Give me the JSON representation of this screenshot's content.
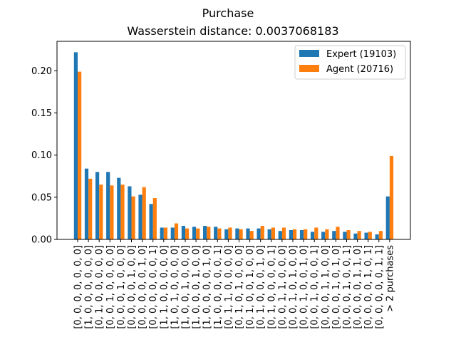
{
  "chart_data": {
    "type": "bar",
    "title": "Purchase",
    "subtitle": "Wasserstein distance: 0.0037068183",
    "xlabel": "",
    "ylabel": "",
    "ylim": [
      0,
      0.235
    ],
    "yticks": [
      "0.00",
      "0.05",
      "0.10",
      "0.15",
      "0.20"
    ],
    "grid": false,
    "legend_position": "top-right",
    "categories": [
      "[0, 0, 0, 0, 0, 0, 0]",
      "[1, 0, 0, 0, 0, 0, 0]",
      "[0, 1, 0, 0, 0, 0, 0]",
      "[0, 0, 1, 0, 0, 0, 0]",
      "[0, 0, 0, 1, 0, 0, 0]",
      "[0, 0, 0, 0, 1, 0, 0]",
      "[0, 0, 0, 0, 0, 1, 0]",
      "[0, 0, 0, 0, 0, 0, 1]",
      "[1, 1, 0, 0, 0, 0, 0]",
      "[1, 0, 1, 0, 0, 0, 0]",
      "[1, 0, 0, 1, 0, 0, 0]",
      "[1, 0, 0, 0, 1, 0, 0]",
      "[1, 0, 0, 0, 0, 1, 0]",
      "[1, 0, 0, 0, 0, 0, 1]",
      "[0, 1, 1, 0, 0, 0, 0]",
      "[0, 1, 0, 1, 0, 0, 0]",
      "[0, 1, 0, 0, 1, 0, 0]",
      "[0, 1, 0, 0, 0, 1, 0]",
      "[0, 1, 0, 0, 0, 0, 1]",
      "[0, 0, 1, 1, 0, 0, 0]",
      "[0, 0, 1, 0, 1, 0, 0]",
      "[0, 0, 1, 0, 0, 1, 0]",
      "[0, 0, 1, 0, 0, 0, 1]",
      "[0, 0, 0, 1, 1, 0, 0]",
      "[0, 0, 0, 1, 0, 1, 0]",
      "[0, 0, 0, 1, 0, 0, 1]",
      "[0, 0, 0, 0, 1, 1, 0]",
      "[0, 0, 0, 0, 1, 0, 1]",
      "[0, 0, 0, 0, 0, 1, 1]",
      "> 2 purchases"
    ],
    "series": [
      {
        "name": "Expert (19103)",
        "color": "#1f77b4",
        "values": [
          0.222,
          0.084,
          0.08,
          0.08,
          0.073,
          0.063,
          0.053,
          0.042,
          0.014,
          0.014,
          0.016,
          0.015,
          0.016,
          0.015,
          0.012,
          0.013,
          0.013,
          0.013,
          0.012,
          0.01,
          0.011,
          0.011,
          0.009,
          0.009,
          0.01,
          0.009,
          0.007,
          0.008,
          0.006,
          0.051
        ]
      },
      {
        "name": "Agent (20716)",
        "color": "#ff7f0e",
        "values": [
          0.199,
          0.072,
          0.065,
          0.064,
          0.065,
          0.051,
          0.062,
          0.049,
          0.014,
          0.019,
          0.013,
          0.013,
          0.015,
          0.013,
          0.014,
          0.012,
          0.01,
          0.016,
          0.014,
          0.014,
          0.012,
          0.012,
          0.014,
          0.012,
          0.015,
          0.011,
          0.01,
          0.009,
          0.01,
          0.099
        ]
      }
    ]
  }
}
